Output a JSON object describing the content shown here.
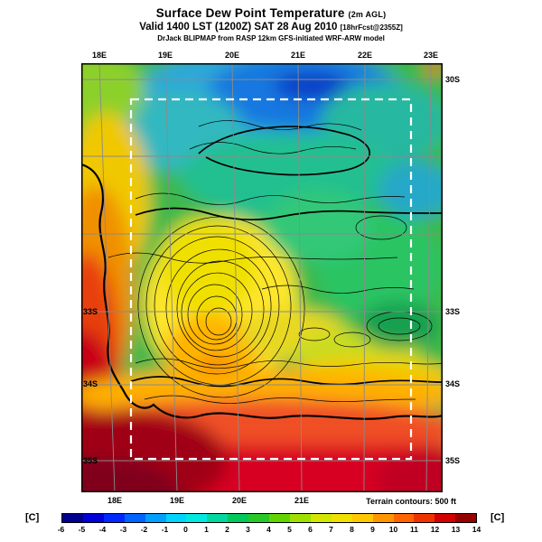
{
  "header": {
    "title_main": "Surface Dew Point Temperature",
    "title_suffix": "(2m AGL)",
    "valid_main": "Valid 1400 LST (1200Z) SAT 28 Aug 2010",
    "valid_suffix": "[18hrFcst@2355Z]",
    "model_line": "DrJack BLIPMAP from RASP 12km GFS-initiated WRF-ARW model"
  },
  "map": {
    "top_lon_labels": [
      "18E",
      "19E",
      "20E",
      "21E",
      "22E",
      "23E"
    ],
    "bottom_lon_labels": [
      "18E",
      "19E",
      "20E",
      "21E"
    ],
    "left_lat_labels": [
      "33S",
      "34S",
      "35S"
    ],
    "right_lat_labels": [
      "30S",
      "33S",
      "34S",
      "35S"
    ],
    "footnote": "Terrain contours: 500 ft"
  },
  "colorbar": {
    "unit_left": "[C]",
    "unit_right": "[C]",
    "tick_labels": [
      "-6",
      "-5",
      "-4",
      "-3",
      "-2",
      "-1",
      "0",
      "1",
      "2",
      "3",
      "4",
      "5",
      "6",
      "7",
      "8",
      "9",
      "10",
      "11",
      "12",
      "13",
      "14"
    ],
    "colors": [
      "#000090",
      "#0000d8",
      "#0028ff",
      "#0064ff",
      "#00a0ff",
      "#00d4ff",
      "#00e8e0",
      "#00d8a0",
      "#00c85a",
      "#28c828",
      "#64d400",
      "#a0e000",
      "#d2e600",
      "#f0e000",
      "#ffc800",
      "#ff9600",
      "#ff6400",
      "#f03200",
      "#d20000",
      "#960000"
    ]
  }
}
